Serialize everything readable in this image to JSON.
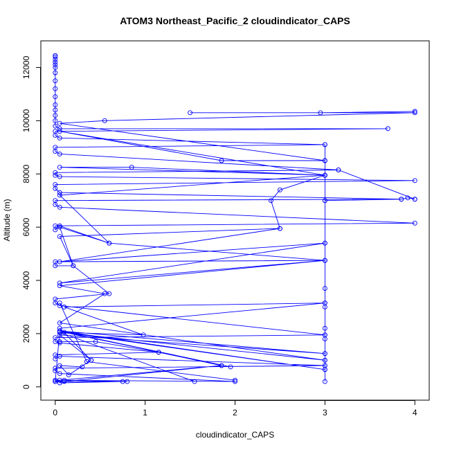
{
  "chart_data": {
    "type": "line",
    "title": "ATOM3 Northeast_Pacific_2 cloudindicator_CAPS",
    "xlabel": "cloudindicator_CAPS",
    "ylabel": "Altitude (m)",
    "xlim": [
      -0.16,
      4.16
    ],
    "ylim": [
      -500,
      13000
    ],
    "x_ticks": [
      0,
      1,
      2,
      3,
      4
    ],
    "y_ticks": [
      0,
      2000,
      4000,
      6000,
      8000,
      10000,
      12000
    ],
    "series_color": "#0000ff",
    "marker": "open-circle",
    "series": [
      {
        "points": [
          [
            0,
            12450
          ],
          [
            0,
            12400
          ],
          [
            0,
            12300
          ],
          [
            0,
            12200
          ],
          [
            0,
            12100
          ],
          [
            0,
            12000
          ],
          [
            0,
            11800
          ],
          [
            0,
            11500
          ],
          [
            0,
            11200
          ],
          [
            0,
            10900
          ],
          [
            0,
            10600
          ],
          [
            0,
            10400
          ],
          [
            0,
            10200
          ],
          [
            0,
            10000
          ],
          [
            0,
            9800
          ],
          [
            0.05,
            9700
          ],
          [
            3.7,
            9700
          ],
          [
            0,
            9600
          ],
          [
            0,
            9450
          ],
          [
            0.05,
            9350
          ],
          [
            3,
            9100
          ],
          [
            0,
            9000
          ],
          [
            0,
            8850
          ],
          [
            0.05,
            8750
          ],
          [
            3.15,
            8150
          ],
          [
            0,
            8050
          ],
          [
            0,
            7950
          ],
          [
            0.05,
            7900
          ],
          [
            4,
            7750
          ],
          [
            0,
            7600
          ],
          [
            0,
            7450
          ],
          [
            0.05,
            7300
          ],
          [
            3.85,
            7050
          ],
          [
            0,
            7000
          ],
          [
            0,
            6850
          ],
          [
            0.05,
            6750
          ],
          [
            4,
            6150
          ],
          [
            0,
            6050
          ],
          [
            0,
            5900
          ],
          [
            0.05,
            6050
          ],
          [
            0.6,
            5400
          ],
          [
            3,
            4750
          ],
          [
            0,
            4700
          ],
          [
            0,
            4550
          ],
          [
            0.2,
            4550
          ],
          [
            0.6,
            3500
          ],
          [
            0,
            3300
          ],
          [
            0,
            3150
          ],
          [
            0.05,
            3050
          ],
          [
            3,
            1950
          ],
          [
            0,
            1850
          ],
          [
            0,
            1700
          ],
          [
            0.05,
            1650
          ],
          [
            1.15,
            1300
          ],
          [
            0,
            1200
          ],
          [
            0,
            1050
          ],
          [
            0.05,
            1150
          ],
          [
            3,
            800
          ],
          [
            0,
            700
          ],
          [
            0,
            600
          ],
          [
            0.05,
            500
          ],
          [
            2,
            200
          ],
          [
            0,
            250
          ],
          [
            0,
            200
          ],
          [
            0.05,
            250
          ],
          [
            1.85,
            800
          ],
          [
            0.1,
            200
          ],
          [
            0.8,
            200
          ],
          [
            0,
            200
          ],
          [
            0.05,
            2100
          ],
          [
            1.95,
            750
          ],
          [
            0.1,
            2050
          ],
          [
            3,
            650
          ],
          [
            0.05,
            2100
          ],
          [
            3,
            1250
          ],
          [
            0.05,
            1950
          ],
          [
            0.4,
            1000
          ],
          [
            0.05,
            2200
          ],
          [
            3,
            3150
          ],
          [
            0.1,
            3000
          ],
          [
            0.98,
            1950
          ],
          [
            0.05,
            2050
          ],
          [
            1.55,
            200
          ],
          [
            0.05,
            2050
          ],
          [
            3,
            1000
          ],
          [
            0.05,
            2400
          ],
          [
            0.55,
            3500
          ],
          [
            0.05,
            3800
          ],
          [
            3,
            4750
          ],
          [
            0.05,
            3900
          ],
          [
            3,
            5400
          ],
          [
            0.05,
            4700
          ],
          [
            2.5,
            5950
          ],
          [
            0.05,
            5650
          ],
          [
            0.2,
            4550
          ],
          [
            0.05,
            6000
          ],
          [
            0.6,
            5400
          ],
          [
            0.05,
            7200
          ],
          [
            3,
            7950
          ],
          [
            0.05,
            8250
          ],
          [
            0.85,
            8250
          ],
          [
            3,
            7950
          ],
          [
            0.05,
            9600
          ],
          [
            1.85,
            8500
          ],
          [
            3,
            8500
          ],
          [
            0.05,
            9900
          ],
          [
            0.55,
            10000
          ],
          [
            4,
            10300
          ],
          [
            1.5,
            10300
          ],
          [
            2.95,
            10300
          ],
          [
            4,
            10350
          ]
        ]
      },
      {
        "points": [
          [
            3,
            9100
          ],
          [
            3,
            8500
          ],
          [
            3,
            7950
          ],
          [
            3,
            7000
          ],
          [
            3,
            5400
          ],
          [
            3,
            4750
          ],
          [
            3,
            3700
          ],
          [
            3,
            3150
          ],
          [
            3,
            3000
          ],
          [
            3,
            2200
          ],
          [
            3,
            1950
          ],
          [
            3,
            1800
          ],
          [
            3,
            1250
          ],
          [
            3,
            1000
          ],
          [
            3,
            800
          ],
          [
            3,
            650
          ],
          [
            3,
            200
          ]
        ]
      },
      {
        "points": [
          [
            3,
            7950
          ],
          [
            2.5,
            7400
          ],
          [
            2.4,
            7000
          ],
          [
            2.5,
            5950
          ]
        ]
      },
      {
        "points": [
          [
            3,
            7000
          ],
          [
            3.85,
            7050
          ],
          [
            3.92,
            7100
          ],
          [
            4,
            7050
          ]
        ]
      },
      {
        "points": [
          [
            3.15,
            8150
          ],
          [
            4,
            7050
          ]
        ]
      },
      {
        "points": [
          [
            0.05,
            3150
          ],
          [
            0.35,
            950
          ],
          [
            2,
            250
          ]
        ]
      },
      {
        "points": [
          [
            0.05,
            1700
          ],
          [
            0.45,
            1700
          ],
          [
            1.15,
            1300
          ],
          [
            1.85,
            800
          ]
        ]
      },
      {
        "points": [
          [
            0.3,
            750
          ],
          [
            0.05,
            800
          ],
          [
            0.15,
            450
          ],
          [
            0.4,
            1000
          ]
        ]
      },
      {
        "points": [
          [
            0.05,
            150
          ],
          [
            0.75,
            200
          ],
          [
            0.1,
            250
          ]
        ]
      }
    ]
  }
}
